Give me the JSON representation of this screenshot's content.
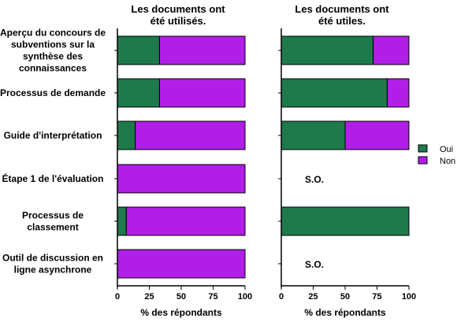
{
  "chart_data": {
    "type": "bar",
    "orientation": "horizontal",
    "stacked": true,
    "categories": [
      "Aperçu du concours de subventions sur la synthèse des connaissances",
      "Processus de demande",
      "Guide d'interprétation",
      "Étape 1 de l'évaluation",
      "Processus de classement",
      "Outil de discussion en ligne asynchrone"
    ],
    "category_lines": [
      [
        "Aperçu du concours de",
        "subventions sur la",
        "synthèse des",
        "connaissances"
      ],
      [
        "Processus de demande"
      ],
      [
        "Guide d'interprétation"
      ],
      [
        "Étape 1 de l'évaluation"
      ],
      [
        "Processus de",
        "classement"
      ],
      [
        "Outil de discussion en",
        "ligne asynchrone"
      ]
    ],
    "legend": {
      "position": "right",
      "entries": [
        {
          "name": "Oui",
          "color": "#1e7a4a"
        },
        {
          "name": "Non",
          "color": "#b01ee8"
        }
      ]
    },
    "panels": [
      {
        "title_lines": [
          "Les documents ont",
          "été utilisés."
        ],
        "xlabel": "% des répondants",
        "xlim": [
          0,
          100
        ],
        "xticks": [
          0,
          25,
          50,
          75,
          100
        ],
        "series": [
          {
            "name": "Oui",
            "values": [
              33,
              33,
              14,
              0,
              7,
              0
            ]
          },
          {
            "name": "Non",
            "values": [
              67,
              67,
              86,
              100,
              93,
              100
            ]
          }
        ],
        "annotations": [
          null,
          null,
          null,
          null,
          null,
          null
        ]
      },
      {
        "title_lines": [
          "Les documents ont",
          "été utiles."
        ],
        "xlabel": "% des répondants",
        "xlim": [
          0,
          100
        ],
        "xticks": [
          0,
          25,
          50,
          75,
          100
        ],
        "series": [
          {
            "name": "Oui",
            "values": [
              72,
              83,
              50,
              null,
              100,
              null
            ]
          },
          {
            "name": "Non",
            "values": [
              28,
              17,
              50,
              null,
              0,
              null
            ]
          }
        ],
        "annotations": [
          null,
          null,
          null,
          "S.O.",
          null,
          "S.O."
        ]
      }
    ]
  }
}
